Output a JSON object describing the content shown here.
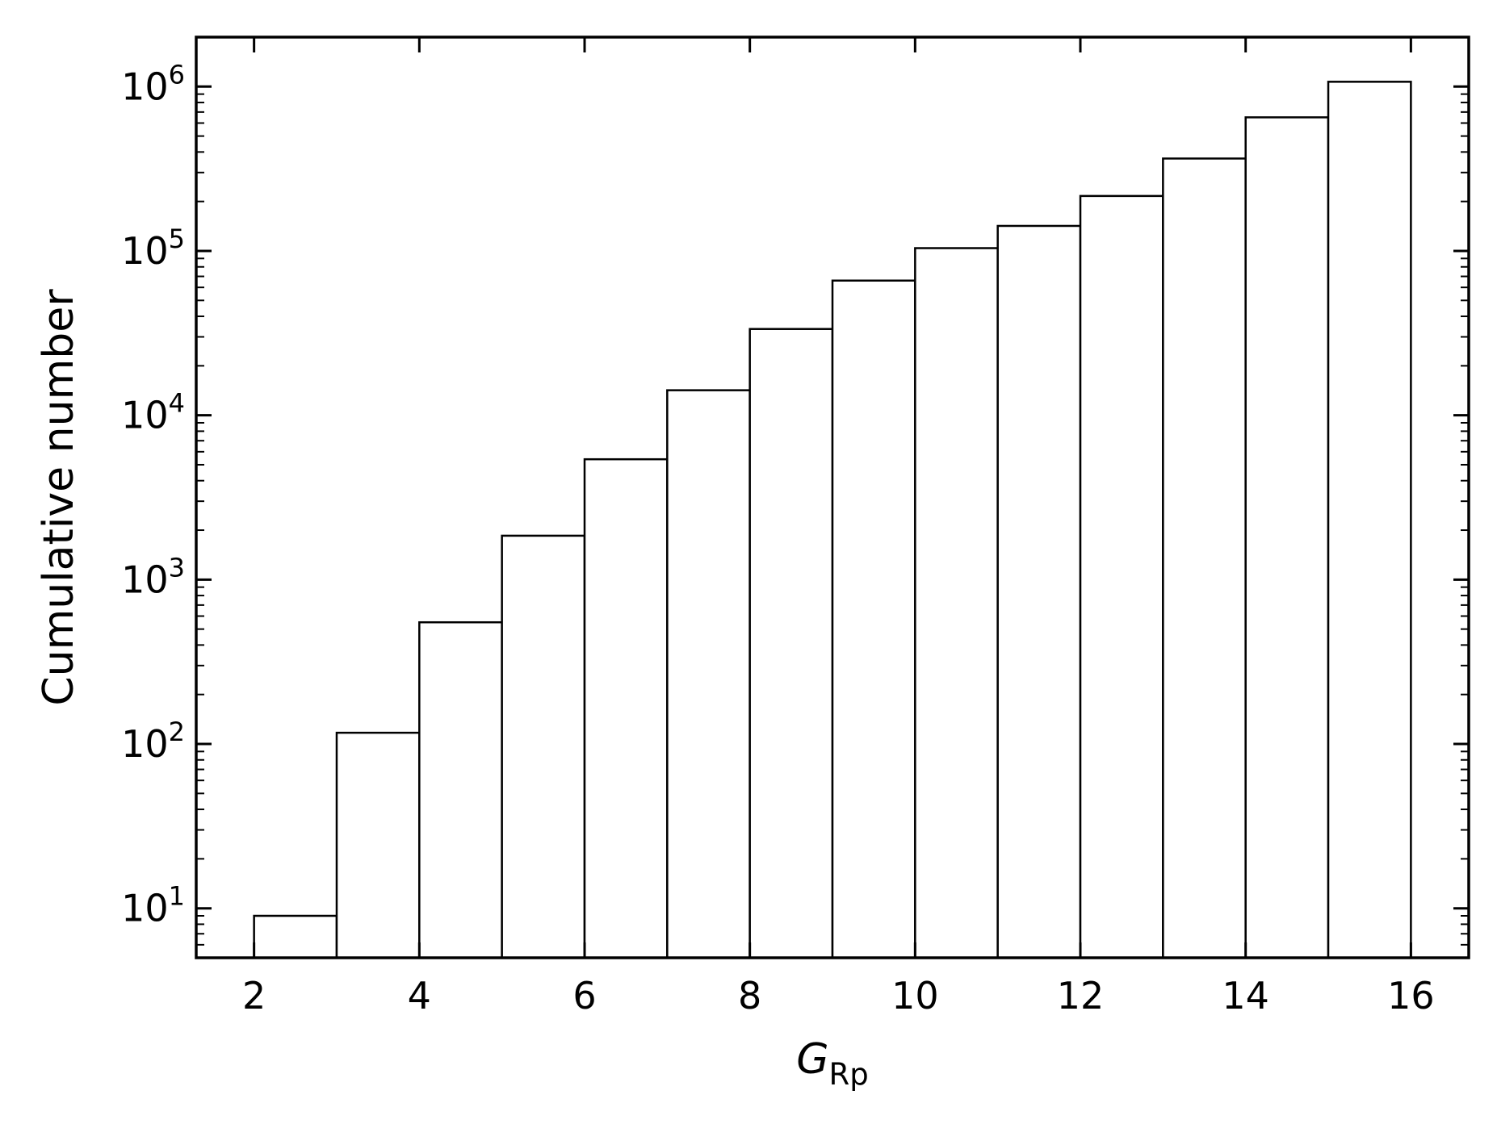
{
  "chart_data": {
    "type": "bar",
    "histtype": "step-cumulative",
    "title": "",
    "xlabel": {
      "main": "G",
      "sub": "Rp"
    },
    "ylabel": "Cumulative number",
    "yscale": "log",
    "xlim": [
      1.3,
      16.7
    ],
    "ylim": [
      5,
      2000000
    ],
    "xticks": [
      2,
      4,
      6,
      8,
      10,
      12,
      14,
      16
    ],
    "xtick_labels": [
      "2",
      "4",
      "6",
      "8",
      "10",
      "12",
      "14",
      "16"
    ],
    "yticks": [
      10,
      100,
      1000,
      10000,
      100000,
      1000000
    ],
    "ytick_labels": [
      {
        "base": "10",
        "exp": "1"
      },
      {
        "base": "10",
        "exp": "2"
      },
      {
        "base": "10",
        "exp": "3"
      },
      {
        "base": "10",
        "exp": "4"
      },
      {
        "base": "10",
        "exp": "5"
      },
      {
        "base": "10",
        "exp": "6"
      }
    ],
    "bins": [
      {
        "x0": 2,
        "x1": 3,
        "value": 9
      },
      {
        "x0": 3,
        "x1": 4,
        "value": 117
      },
      {
        "x0": 4,
        "x1": 5,
        "value": 550
      },
      {
        "x0": 5,
        "x1": 6,
        "value": 1850
      },
      {
        "x0": 6,
        "x1": 7,
        "value": 5400
      },
      {
        "x0": 7,
        "x1": 8,
        "value": 14200
      },
      {
        "x0": 8,
        "x1": 9,
        "value": 33500
      },
      {
        "x0": 9,
        "x1": 10,
        "value": 66000
      },
      {
        "x0": 10,
        "x1": 11,
        "value": 104000
      },
      {
        "x0": 11,
        "x1": 12,
        "value": 142000
      },
      {
        "x0": 12,
        "x1": 13,
        "value": 216000
      },
      {
        "x0": 13,
        "x1": 14,
        "value": 365000
      },
      {
        "x0": 14,
        "x1": 15,
        "value": 650000
      },
      {
        "x0": 15,
        "x1": 16,
        "value": 1070000
      }
    ],
    "grid": false,
    "legend": "none",
    "colors": {
      "bar_fill": "#ffffff",
      "bar_edge": "#000000",
      "axes": "#000000"
    }
  }
}
